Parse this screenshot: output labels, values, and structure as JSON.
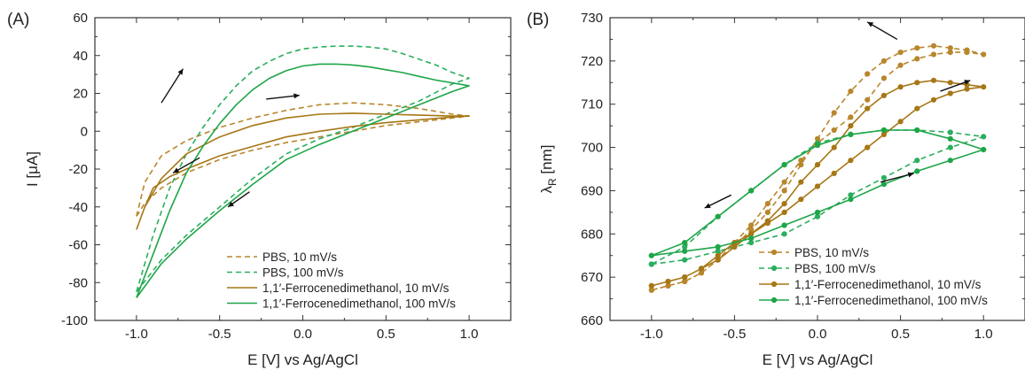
{
  "chart_data": [
    {
      "panel_label": "(A)",
      "type": "line",
      "xlabel": "E [V] vs Ag/AgCl",
      "ylabel": "I [μA]",
      "xlim": [
        -1.25,
        1.25
      ],
      "ylim": [
        -100,
        60
      ],
      "xticks": [
        "-1.0",
        "-0.5",
        "0.0",
        "0.5",
        "1.0"
      ],
      "yticks": [
        "-100",
        "-80",
        "-60",
        "-40",
        "-20",
        "0",
        "20",
        "40",
        "60"
      ],
      "legend_position": "bottom-right",
      "colors": {
        "pbs_gold": "#b8862c",
        "pbs_green": "#2aae5e",
        "ferro_gold": "#a67716",
        "ferro_green": "#1ea548"
      },
      "series": [
        {
          "name": "PBS, 10 mV/s",
          "color": "#b8862c",
          "dash": true,
          "markers": false,
          "x": [
            -1.0,
            -0.95,
            -0.85,
            -0.7,
            -0.5,
            -0.3,
            -0.1,
            0.1,
            0.3,
            0.5,
            0.7,
            0.9,
            1.0,
            0.9,
            0.7,
            0.5,
            0.3,
            0.1,
            -0.1,
            -0.3,
            -0.5,
            -0.7,
            -0.85,
            -0.95,
            -1.0
          ],
          "y": [
            -45,
            -27,
            -13,
            -5,
            2,
            7,
            11,
            14,
            15,
            14,
            12,
            9,
            8,
            7,
            5,
            3,
            0,
            -3,
            -6,
            -10,
            -15,
            -22,
            -30,
            -38,
            -45
          ]
        },
        {
          "name": "PBS, 100 mV/s",
          "color": "#2aae5e",
          "dash": true,
          "markers": false,
          "x": [
            -1.0,
            -0.9,
            -0.8,
            -0.7,
            -0.6,
            -0.5,
            -0.4,
            -0.3,
            -0.2,
            -0.1,
            0.0,
            0.1,
            0.2,
            0.3,
            0.4,
            0.5,
            0.6,
            0.7,
            0.8,
            0.9,
            1.0,
            0.9,
            0.7,
            0.5,
            0.3,
            0.1,
            -0.1,
            -0.3,
            -0.5,
            -0.7,
            -0.85,
            -1.0
          ],
          "y": [
            -85,
            -55,
            -30,
            -12,
            2,
            14,
            24,
            32,
            37,
            41,
            43.5,
            44.5,
            45,
            45,
            44.5,
            43.5,
            41,
            38,
            35,
            31,
            28,
            25,
            16,
            9,
            2,
            -4,
            -12,
            -25,
            -40,
            -55,
            -68,
            -85
          ]
        },
        {
          "name": "1,1′-Ferrocenedimethanol, 10 mV/s",
          "color": "#a67716",
          "dash": false,
          "markers": false,
          "x": [
            -1.0,
            -0.95,
            -0.85,
            -0.7,
            -0.5,
            -0.3,
            -0.1,
            0.1,
            0.3,
            0.5,
            0.7,
            0.9,
            1.0,
            0.9,
            0.7,
            0.5,
            0.3,
            0.1,
            -0.1,
            -0.3,
            -0.5,
            -0.7,
            -0.8,
            -0.9,
            -0.95,
            -1.0
          ],
          "y": [
            -52,
            -40,
            -25,
            -12,
            -3,
            3,
            7,
            9,
            9.5,
            9,
            8.5,
            8,
            8,
            7.5,
            6,
            4.5,
            2.5,
            0,
            -3,
            -8,
            -13,
            -20,
            -24,
            -30,
            -40,
            -52
          ]
        },
        {
          "name": "1,1′-Ferrocenedimethanol, 100 mV/s",
          "color": "#1ea548",
          "dash": false,
          "markers": false,
          "x": [
            -1.0,
            -0.9,
            -0.8,
            -0.7,
            -0.6,
            -0.5,
            -0.4,
            -0.3,
            -0.2,
            -0.1,
            0.0,
            0.1,
            0.2,
            0.3,
            0.4,
            0.5,
            0.6,
            0.7,
            0.8,
            0.9,
            1.0,
            0.9,
            0.7,
            0.5,
            0.3,
            0.1,
            -0.1,
            -0.3,
            -0.5,
            -0.7,
            -0.85,
            -1.0
          ],
          "y": [
            -88,
            -65,
            -42,
            -22,
            -8,
            4,
            14,
            22,
            28,
            32,
            34.5,
            35.5,
            35.5,
            35,
            34,
            32.5,
            31,
            29,
            27,
            25.5,
            24,
            21,
            14,
            7,
            0,
            -7,
            -15,
            -28,
            -42,
            -57,
            -70,
            -88
          ]
        }
      ]
    },
    {
      "panel_label": "(B)",
      "type": "line",
      "xlabel": "E [V] vs Ag/AgCl",
      "ylabel": "λ",
      "ylabel_sub": "R",
      "ylabel_unit": " [nm]",
      "xlim": [
        -1.25,
        1.25
      ],
      "ylim": [
        660,
        730
      ],
      "xticks": [
        "-1.0",
        "-0.5",
        "0.0",
        "0.5",
        "1.0"
      ],
      "yticks": [
        "660",
        "670",
        "680",
        "690",
        "700",
        "710",
        "720",
        "730"
      ],
      "legend_position": "bottom-right",
      "series": [
        {
          "name": "PBS, 10 mV/s",
          "color": "#b8862c",
          "dash": true,
          "markers": true,
          "x": [
            -1.0,
            -0.9,
            -0.8,
            -0.7,
            -0.6,
            -0.5,
            -0.4,
            -0.3,
            -0.2,
            -0.1,
            0.0,
            0.1,
            0.2,
            0.3,
            0.4,
            0.5,
            0.6,
            0.7,
            0.8,
            0.9,
            1.0,
            0.9,
            0.8,
            0.7,
            0.6,
            0.5,
            0.4,
            0.3,
            0.2,
            0.1,
            0.0,
            -0.1,
            -0.2,
            -0.3,
            -0.4,
            -0.5,
            -0.6,
            -0.7,
            -0.8,
            -0.9,
            -1.0
          ],
          "y": [
            667,
            668,
            669,
            671,
            674,
            678,
            682,
            687,
            692,
            697,
            701,
            704,
            707,
            711,
            716,
            719,
            720.5,
            721.5,
            722,
            722,
            721.5,
            722.5,
            723,
            723.5,
            723,
            722,
            720,
            717,
            713,
            708,
            702,
            696,
            690,
            685,
            681,
            677,
            674,
            671,
            669,
            668,
            667
          ]
        },
        {
          "name": "PBS, 100 mV/s",
          "color": "#2aae5e",
          "dash": true,
          "markers": true,
          "x": [
            -1.0,
            -0.8,
            -0.6,
            -0.4,
            -0.2,
            0.0,
            0.2,
            0.4,
            0.6,
            0.8,
            1.0,
            0.8,
            0.6,
            0.4,
            0.2,
            0.0,
            -0.2,
            -0.4,
            -0.6,
            -0.8,
            -1.0
          ],
          "y": [
            673,
            674,
            676,
            678,
            680,
            684,
            689,
            693,
            697,
            700,
            702.5,
            703.5,
            704,
            704,
            703,
            701,
            696,
            690,
            684,
            677,
            673
          ]
        },
        {
          "name": "1,1′-Ferrocenedimethanol, 10 mV/s",
          "color": "#a67716",
          "dash": false,
          "markers": true,
          "x": [
            -1.0,
            -0.9,
            -0.8,
            -0.7,
            -0.6,
            -0.5,
            -0.4,
            -0.3,
            -0.2,
            -0.1,
            0.0,
            0.1,
            0.2,
            0.3,
            0.4,
            0.5,
            0.6,
            0.7,
            0.8,
            0.9,
            1.0,
            0.9,
            0.8,
            0.7,
            0.6,
            0.5,
            0.4,
            0.3,
            0.2,
            0.1,
            0.0,
            -0.1,
            -0.2,
            -0.3,
            -0.4,
            -0.5,
            -0.6,
            -0.7,
            -0.8,
            -0.9,
            -1.0
          ],
          "y": [
            668,
            669,
            670,
            672,
            675,
            678,
            680,
            682.5,
            685,
            688,
            691,
            694,
            697,
            700,
            703,
            706,
            709,
            711,
            712.5,
            713.5,
            714,
            714.5,
            715,
            715.5,
            715,
            714,
            712,
            709,
            705,
            700,
            696,
            692,
            687,
            683,
            680,
            677,
            674,
            672,
            670,
            669,
            668
          ]
        },
        {
          "name": "1,1′-Ferrocenedimethanol, 100 mV/s",
          "color": "#1ea548",
          "dash": false,
          "markers": true,
          "x": [
            -1.0,
            -0.8,
            -0.6,
            -0.4,
            -0.2,
            0.0,
            0.2,
            0.4,
            0.6,
            0.8,
            1.0,
            0.8,
            0.6,
            0.4,
            0.2,
            0.0,
            -0.2,
            -0.4,
            -0.6,
            -0.8,
            -1.0
          ],
          "y": [
            675,
            676,
            677,
            679,
            682,
            685,
            688,
            691.5,
            694.5,
            697,
            699.5,
            702,
            704,
            704,
            703,
            700.5,
            696,
            690,
            684,
            678,
            675
          ]
        }
      ]
    }
  ]
}
